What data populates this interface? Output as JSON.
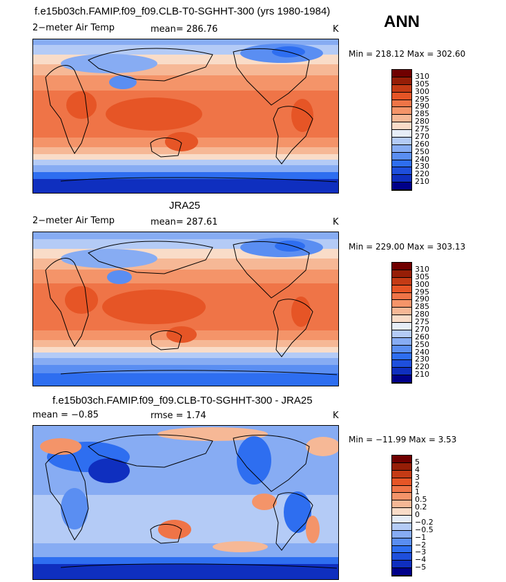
{
  "season": "ANN",
  "chart_data": [
    {
      "type": "heatmap",
      "title": "f.e15b03ch.FAMIP.f09_f09.CLB-T0-SGHHT-300 (yrs 1980-1984)",
      "variable": "2−meter Air Temp",
      "stat_text": "mean=  286.76",
      "units": "K",
      "minmax": "Min = 218.12 Max = 302.60",
      "levels": [
        "210",
        "220",
        "230",
        "240",
        "250",
        "260",
        "270",
        "275",
        "280",
        "285",
        "290",
        "295",
        "300",
        "305",
        "310"
      ],
      "colors": [
        "#000089",
        "#0f2fbf",
        "#1e4fdc",
        "#2e6ef0",
        "#5a8ef2",
        "#87acf3",
        "#b4cbf6",
        "#e6edf7",
        "#f9dcc8",
        "#f6b896",
        "#f49469",
        "#ef7447",
        "#e65526",
        "#c43b15",
        "#961e07",
        "#700000"
      ]
    },
    {
      "type": "heatmap",
      "title": "JRA25",
      "variable": "2−meter Air Temp",
      "stat_text": "mean=  287.61",
      "units": "K",
      "minmax": "Min = 229.00 Max = 303.13",
      "levels": [
        "210",
        "220",
        "230",
        "240",
        "250",
        "260",
        "270",
        "275",
        "280",
        "285",
        "290",
        "295",
        "300",
        "305",
        "310"
      ],
      "colors": [
        "#000089",
        "#0f2fbf",
        "#1e4fdc",
        "#2e6ef0",
        "#5a8ef2",
        "#87acf3",
        "#b4cbf6",
        "#e6edf7",
        "#f9dcc8",
        "#f6b896",
        "#f49469",
        "#ef7447",
        "#e65526",
        "#c43b15",
        "#961e07",
        "#700000"
      ]
    },
    {
      "type": "heatmap",
      "title": "f.e15b03ch.FAMIP.f09_f09.CLB-T0-SGHHT-300 - JRA25",
      "stat_text": "mean =   −0.85",
      "stat2_text": "rmse =    1.74",
      "units": "K",
      "minmax": "Min = −11.99 Max =    3.53",
      "levels": [
        "−5",
        "−4",
        "−3",
        "−2",
        "−1",
        "−0.5",
        "−0.2",
        "0",
        "0.2",
        "0.5",
        "1",
        "2",
        "3",
        "4",
        "5"
      ],
      "colors": [
        "#000089",
        "#0f2fbf",
        "#1e4fdc",
        "#2e6ef0",
        "#5a8ef2",
        "#87acf3",
        "#b4cbf6",
        "#e6edf7",
        "#f9dcc8",
        "#f6b896",
        "#f49469",
        "#ef7447",
        "#e65526",
        "#c43b15",
        "#961e07",
        "#700000"
      ]
    }
  ]
}
